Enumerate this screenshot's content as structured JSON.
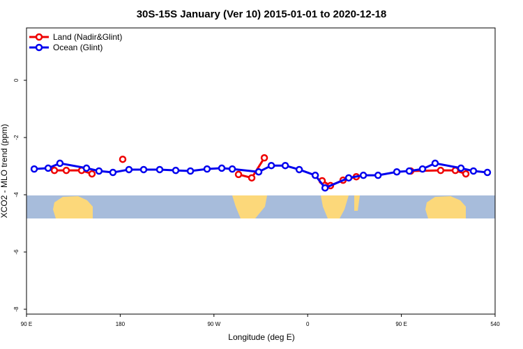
{
  "chart_data": {
    "type": "line",
    "title": "30S-15S January (Ver 10)   2015-01-01 to 2020-12-18",
    "x_label": "Longitude (deg E)",
    "y_label": "XCO2 - MLO trend (ppm)",
    "xlim": [
      90,
      540
    ],
    "xticks": [
      {
        "value": 90,
        "label": "90 E"
      },
      180,
      {
        "value": 270,
        "label": "90 W"
      },
      {
        "value": 360,
        "label": "0"
      },
      {
        "value": 450,
        "label": "90 E"
      },
      540
    ],
    "ylim": [
      -8.17,
      1.83
    ],
    "yticks": [
      0,
      -2,
      -4,
      -6,
      -8
    ],
    "legend": "upper left",
    "series": [
      {
        "name": "Land (Nadir&Glint)",
        "color": "#ee0000",
        "x": [
          116.8,
          128.2,
          142.9,
          152.9,
          null,
          182.4,
          null,
          293.6,
          306.3,
          318.4,
          null,
          373.9,
          381.9,
          394.0,
          406.7,
          null,
          458.9,
          487.7,
          501.8,
          511.9
        ],
        "values": [
          -3.15,
          -3.15,
          -3.15,
          -3.27,
          null,
          -2.76,
          null,
          -3.29,
          -3.41,
          -2.71,
          null,
          -3.51,
          -3.68,
          -3.49,
          -3.37,
          null,
          -3.17,
          -3.15,
          -3.15,
          -3.27
        ]
      },
      {
        "name": "Ocean (Glint)",
        "color": "#0000ee",
        "x": [
          97.4,
          110.8,
          122.1,
          147.6,
          159.6,
          173.0,
          188.4,
          202.5,
          217.9,
          233.3,
          247.4,
          263.4,
          277.5,
          287.6,
          313.0,
          325.1,
          338.5,
          351.9,
          367.3,
          376.7,
          399.4,
          413.5,
          427.6,
          445.6,
          457.6,
          470.3,
          482.4,
          507.2,
          519.2,
          532.6
        ],
        "values": [
          -3.1,
          -3.07,
          -2.9,
          -3.07,
          -3.17,
          -3.22,
          -3.12,
          -3.12,
          -3.12,
          -3.15,
          -3.17,
          -3.1,
          -3.07,
          -3.1,
          -3.2,
          -2.98,
          -2.98,
          -3.12,
          -3.32,
          -3.76,
          -3.41,
          -3.32,
          -3.32,
          -3.2,
          -3.17,
          -3.1,
          -2.9,
          -3.07,
          -3.17,
          -3.22
        ]
      }
    ]
  }
}
